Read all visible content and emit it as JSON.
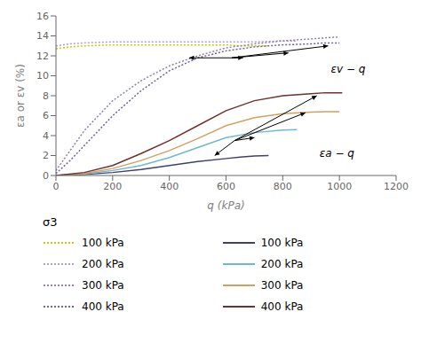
{
  "chart_data": {
    "type": "line",
    "title": "",
    "xlabel": "q (kPa)",
    "ylabel": "εa or εv (%)",
    "xlim": [
      0,
      1200
    ],
    "ylim": [
      0,
      16
    ],
    "xticks": [
      0,
      200,
      400,
      600,
      800,
      1000,
      1200
    ],
    "yticks": [
      0,
      2,
      4,
      6,
      8,
      10,
      12,
      14,
      16
    ],
    "grid": false,
    "legend_title": "σ3",
    "series": [
      {
        "name": "100 kPa",
        "color": "#c8c800",
        "line_style": "dotted",
        "x": [
          0,
          50,
          100,
          200,
          300,
          400,
          500,
          600,
          650,
          700,
          750
        ],
        "values": [
          12.7,
          12.9,
          13.0,
          13.1,
          13.1,
          13.1,
          13.1,
          13.1,
          13.0,
          13.0,
          13.0
        ]
      },
      {
        "name": "200 kPa",
        "color": "#b0a0c0",
        "line_style": "dotted",
        "x": [
          0,
          50,
          100,
          200,
          300,
          400,
          500,
          600,
          700,
          800,
          850
        ],
        "values": [
          13.0,
          13.2,
          13.3,
          13.4,
          13.4,
          13.4,
          13.4,
          13.4,
          13.4,
          13.5,
          13.5
        ]
      },
      {
        "name": "300 kPa",
        "color": "#9080b0",
        "line_style": "dotted",
        "x": [
          0,
          50,
          100,
          200,
          300,
          400,
          500,
          600,
          700,
          800,
          900,
          950,
          1000
        ],
        "values": [
          0.5,
          2.5,
          4.5,
          7.5,
          9.5,
          11.0,
          12.0,
          12.8,
          13.2,
          13.5,
          13.7,
          13.8,
          13.9
        ]
      },
      {
        "name": "400 kPa",
        "color": "#7060a0",
        "line_style": "dotted",
        "x": [
          0,
          50,
          100,
          200,
          300,
          400,
          500,
          600,
          700,
          800,
          900,
          950,
          1000
        ],
        "values": [
          0.2,
          1.5,
          3.0,
          6.0,
          8.5,
          10.5,
          11.8,
          12.5,
          12.9,
          13.1,
          13.2,
          13.3,
          13.3
        ]
      },
      {
        "name": "100 kPa",
        "color": "#404070",
        "line_style": "solid",
        "x": [
          0,
          100,
          200,
          300,
          400,
          500,
          600,
          650,
          700,
          750
        ],
        "values": [
          0,
          0.1,
          0.3,
          0.6,
          1.0,
          1.4,
          1.7,
          1.85,
          1.95,
          2.0
        ]
      },
      {
        "name": "200 kPa",
        "color": "#70b8d0",
        "line_style": "solid",
        "x": [
          0,
          100,
          200,
          300,
          400,
          500,
          600,
          700,
          800,
          850
        ],
        "values": [
          0,
          0.15,
          0.5,
          1.0,
          1.8,
          2.8,
          3.8,
          4.3,
          4.55,
          4.6
        ]
      },
      {
        "name": "300 kPa",
        "color": "#d4a060",
        "line_style": "solid",
        "x": [
          0,
          100,
          200,
          300,
          400,
          500,
          600,
          700,
          800,
          900,
          950,
          1000
        ],
        "values": [
          0,
          0.2,
          0.7,
          1.5,
          2.5,
          3.7,
          5.0,
          5.8,
          6.2,
          6.35,
          6.4,
          6.4
        ]
      },
      {
        "name": "400 kPa",
        "color": "#703030",
        "line_style": "solid",
        "x": [
          0,
          100,
          200,
          300,
          400,
          500,
          600,
          700,
          800,
          900,
          950,
          980,
          1010
        ],
        "values": [
          0,
          0.3,
          1.0,
          2.2,
          3.5,
          5.0,
          6.5,
          7.5,
          8.0,
          8.2,
          8.3,
          8.3,
          8.3
        ]
      }
    ],
    "annotations": [
      {
        "text": "εv − q",
        "x": 970,
        "y": 11.3,
        "arrow_from": [
          620,
          11.8
        ],
        "arrow_to": [
          [
            470,
            11.8
          ],
          [
            660,
            11.8
          ],
          [
            820,
            12.3
          ],
          [
            960,
            13.0
          ]
        ]
      },
      {
        "text": "εa − q",
        "x": 930,
        "y": 2.8,
        "arrow_from": [
          630,
          3.5
        ],
        "arrow_to": [
          [
            560,
            2.0
          ],
          [
            700,
            3.8
          ],
          [
            880,
            6.3
          ],
          [
            920,
            8.0
          ]
        ]
      }
    ]
  }
}
